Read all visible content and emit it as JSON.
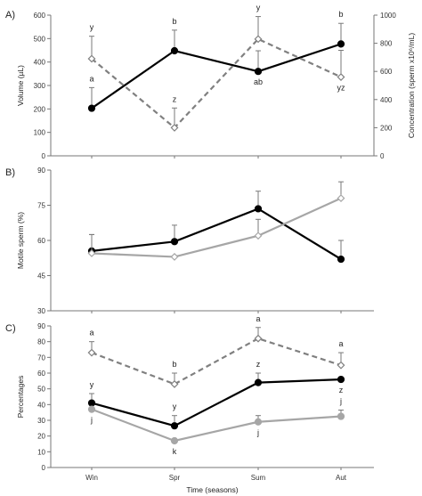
{
  "chart_data": [
    {
      "panel_label": "A)",
      "type": "line",
      "categories": [
        "Win",
        "Spr",
        "Sum",
        "Aut"
      ],
      "ylabel": "Volume (µL)",
      "ylim": [
        0,
        600
      ],
      "yticks": [
        "0",
        "100",
        "200",
        "300",
        "400",
        "500",
        "600"
      ],
      "y2label": "Concentration (sperm x10⁶/mL)",
      "y2lim": [
        0,
        1000
      ],
      "y2ticks": [
        "0",
        "200",
        "400",
        "600",
        "800",
        "1000"
      ],
      "grid": false,
      "series": [
        {
          "axis": "left",
          "color": "#000000",
          "style": "solid",
          "marker": "filled-circle",
          "values": [
            203,
            448,
            360,
            477
          ],
          "errors": [
            88,
            88,
            88,
            88
          ],
          "letters": [
            "a",
            "b",
            "ab",
            "b"
          ],
          "letter_pos": [
            "above",
            "above",
            "below",
            "above"
          ]
        },
        {
          "axis": "right",
          "color": "#808080",
          "style": "dashed",
          "marker": "open-diamond",
          "values": [
            690,
            200,
            830,
            560
          ],
          "errors": [
            160,
            140,
            160,
            190
          ],
          "letters": [
            "y",
            "z",
            "y",
            "yz"
          ],
          "letter_pos": [
            "above",
            "above",
            "above",
            "below"
          ]
        }
      ]
    },
    {
      "panel_label": "B)",
      "type": "line",
      "categories": [
        "Win",
        "Spr",
        "Sum",
        "Aut"
      ],
      "ylabel": "Motile sperm (%)",
      "ylim": [
        30,
        90
      ],
      "yticks": [
        "30",
        "45",
        "60",
        "75",
        "90"
      ],
      "grid": false,
      "series": [
        {
          "color": "#000000",
          "style": "solid",
          "marker": "filled-circle",
          "values": [
            55.5,
            59.5,
            73.5,
            52
          ],
          "errors": [
            7,
            7,
            7.5,
            8
          ],
          "letters": [
            "",
            "",
            "",
            ""
          ],
          "letter_pos": [
            "above",
            "above",
            "above",
            "above"
          ]
        },
        {
          "color": "#a6a6a6",
          "style": "solid",
          "marker": "open-diamond",
          "values": [
            54.5,
            53,
            62,
            78
          ],
          "errors": [
            8,
            0,
            7,
            7
          ],
          "letters": [
            "",
            "",
            "",
            ""
          ],
          "letter_pos": [
            "above",
            "above",
            "above",
            "above"
          ]
        }
      ]
    },
    {
      "panel_label": "C)",
      "type": "line",
      "categories": [
        "Win",
        "Spr",
        "Sum",
        "Aut"
      ],
      "xlabel": "Time (seasons)",
      "ylabel": "Percentages",
      "ylim": [
        0,
        90
      ],
      "yticks": [
        "0",
        "10",
        "20",
        "30",
        "40",
        "50",
        "60",
        "70",
        "80",
        "90"
      ],
      "grid": false,
      "series": [
        {
          "color": "#808080",
          "style": "dashed",
          "marker": "open-diamond",
          "values": [
            73,
            53,
            82,
            65
          ],
          "errors": [
            7,
            7,
            7,
            8
          ],
          "letters": [
            "a",
            "b",
            "a",
            "a"
          ],
          "letter_pos": [
            "above",
            "above",
            "above",
            "above"
          ]
        },
        {
          "color": "#000000",
          "style": "solid",
          "marker": "filled-circle",
          "values": [
            41,
            26.5,
            54,
            56
          ],
          "errors": [
            6,
            6.5,
            6,
            0
          ],
          "letters": [
            "y",
            "y",
            "z",
            "z"
          ],
          "letter_pos": [
            "above",
            "above",
            "above",
            "below"
          ]
        },
        {
          "color": "#a6a6a6",
          "style": "solid",
          "marker": "filled-circle",
          "values": [
            37,
            17,
            29,
            32.5
          ],
          "errors": [
            0,
            0,
            4,
            4
          ],
          "letters": [
            "j",
            "k",
            "j",
            "j"
          ],
          "letter_pos": [
            "below",
            "below",
            "below",
            "above"
          ]
        }
      ]
    }
  ]
}
